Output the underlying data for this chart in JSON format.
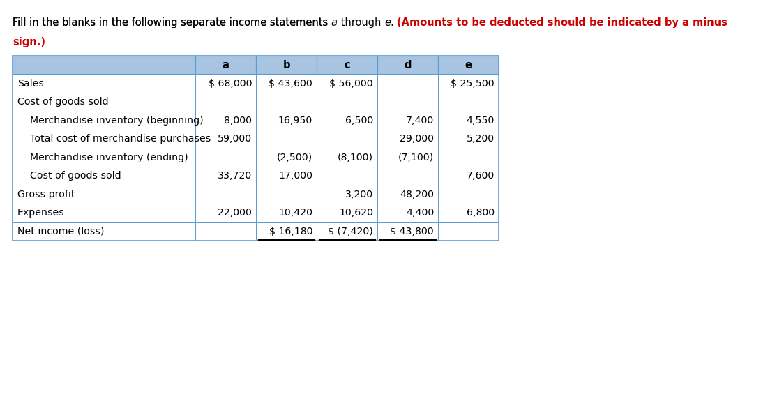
{
  "header_bg": "#a8c4e0",
  "border_color": "#5b9bd5",
  "columns": [
    "",
    "a",
    "b",
    "c",
    "d",
    "e"
  ],
  "rows": [
    {
      "label": "Sales",
      "indent": false,
      "values": [
        "$ 68,000",
        "$ 43,600",
        "$ 56,000",
        "",
        "$ 25,500"
      ]
    },
    {
      "label": "Cost of goods sold",
      "indent": false,
      "values": [
        "",
        "",
        "",
        "",
        ""
      ]
    },
    {
      "label": "Merchandise inventory (beginning)",
      "indent": true,
      "values": [
        "8,000",
        "16,950",
        "6,500",
        "7,400",
        "4,550"
      ]
    },
    {
      "label": "Total cost of merchandise purchases",
      "indent": true,
      "values": [
        "59,000",
        "",
        "",
        "29,000",
        "5,200"
      ]
    },
    {
      "label": "Merchandise inventory (ending)",
      "indent": true,
      "values": [
        "",
        "(2,500)",
        "(8,100)",
        "(7,100)",
        ""
      ]
    },
    {
      "label": "Cost of goods sold",
      "indent": true,
      "values": [
        "33,720",
        "17,000",
        "",
        "",
        "7,600"
      ]
    },
    {
      "label": "Gross profit",
      "indent": false,
      "values": [
        "",
        "",
        "3,200",
        "48,200",
        ""
      ]
    },
    {
      "label": "Expenses",
      "indent": false,
      "values": [
        "22,000",
        "10,420",
        "10,620",
        "4,400",
        "6,800"
      ]
    },
    {
      "label": "Net income (loss)",
      "indent": false,
      "values": [
        "",
        "$ 16,180",
        "$ (7,420)",
        "$ 43,800",
        ""
      ]
    }
  ],
  "fig_width": 11.24,
  "fig_height": 5.75,
  "dpi": 100,
  "title_part1": "Fill in the blanks in the following separate income statements ",
  "title_italic_a": "a",
  "title_part2": " through ",
  "title_italic_e": "e",
  "title_part3": ". ",
  "title_bold": "(Amounts to be deducted should be indicated by a minus",
  "title_bold2": "sign.)",
  "title_color_normal": "#000000",
  "title_color_bold": "#cc0000"
}
